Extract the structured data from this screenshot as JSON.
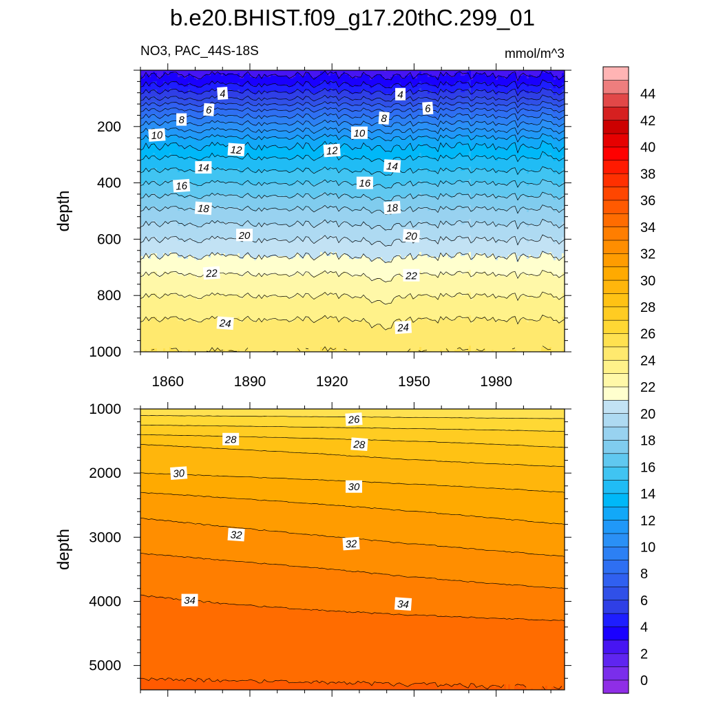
{
  "title": "b.e20.BHIST.f09_g17.20thC.299_01",
  "subtitle_left": "NO3, PAC_44S-18S",
  "subtitle_right": "mmol/m^3",
  "chart_data": [
    {
      "type": "contour",
      "panel": "upper",
      "variable": "NO3",
      "region": "PAC_44S-18S",
      "units": "mmol/m^3",
      "xlabel": "",
      "ylabel": "depth",
      "xlim": [
        1850,
        2005
      ],
      "ylim": [
        1000,
        0
      ],
      "x_ticks": [
        1860,
        1890,
        1920,
        1950,
        1980
      ],
      "y_ticks": [
        200,
        400,
        600,
        800,
        1000
      ],
      "contour_interval": 1,
      "depth_profile": {
        "depth": [
          0,
          50,
          100,
          150,
          200,
          250,
          300,
          400,
          500,
          600,
          700,
          800,
          900,
          1000
        ],
        "no3": [
          2.5,
          4.0,
          6.0,
          8.5,
          10.5,
          12.5,
          13.8,
          16.0,
          18.2,
          20.0,
          21.7,
          23.0,
          24.2,
          25.0
        ]
      },
      "contour_labels": [
        {
          "value": "4",
          "year": 1880,
          "depth": 82
        },
        {
          "value": "4",
          "year": 1945,
          "depth": 85
        },
        {
          "value": "6",
          "year": 1875,
          "depth": 140
        },
        {
          "value": "6",
          "year": 1955,
          "depth": 135
        },
        {
          "value": "8",
          "year": 1865,
          "depth": 175
        },
        {
          "value": "8",
          "year": 1939,
          "depth": 170
        },
        {
          "value": "10",
          "year": 1856,
          "depth": 230
        },
        {
          "value": "10",
          "year": 1930,
          "depth": 222
        },
        {
          "value": "12",
          "year": 1885,
          "depth": 282
        },
        {
          "value": "12",
          "year": 1920,
          "depth": 285
        },
        {
          "value": "14",
          "year": 1873,
          "depth": 345
        },
        {
          "value": "14",
          "year": 1942,
          "depth": 340
        },
        {
          "value": "16",
          "year": 1865,
          "depth": 410
        },
        {
          "value": "16",
          "year": 1932,
          "depth": 400
        },
        {
          "value": "18",
          "year": 1873,
          "depth": 490
        },
        {
          "value": "18",
          "year": 1942,
          "depth": 488
        },
        {
          "value": "20",
          "year": 1888,
          "depth": 585
        },
        {
          "value": "20",
          "year": 1949,
          "depth": 588
        },
        {
          "value": "22",
          "year": 1876,
          "depth": 720
        },
        {
          "value": "22",
          "year": 1949,
          "depth": 728
        },
        {
          "value": "24",
          "year": 1881,
          "depth": 898
        },
        {
          "value": "24",
          "year": 1946,
          "depth": 913
        }
      ]
    },
    {
      "type": "contour",
      "panel": "lower",
      "xlabel": "",
      "ylabel": "depth",
      "xlim": [
        1850,
        2005
      ],
      "ylim": [
        5380,
        1000
      ],
      "y_ticks": [
        1000,
        2000,
        3000,
        4000,
        5000
      ],
      "contour_interval": 1,
      "depth_profile_1850": {
        "depth": [
          1000,
          1100,
          1250,
          1400,
          1550,
          1700,
          2000,
          2300,
          2700,
          3100,
          3500,
          3900,
          4500,
          5380
        ],
        "no3": [
          25.0,
          26.0,
          27.0,
          28.0,
          29.0,
          29.5,
          30.0,
          31.0,
          32.0,
          32.7,
          33.5,
          34.0,
          34.6,
          35.1
        ]
      },
      "depth_profile_2005": {
        "depth": [
          1000,
          1150,
          1350,
          1600,
          1900,
          2300,
          2800,
          3300,
          3800,
          4300,
          4700,
          5300,
          5380
        ],
        "no3": [
          25.0,
          26.0,
          27.0,
          28.0,
          29.0,
          30.0,
          31.0,
          32.0,
          33.0,
          34.0,
          34.6,
          34.98,
          35.0
        ]
      },
      "contour_labels": [
        {
          "value": "26",
          "year": 1928,
          "depth": 1160
        },
        {
          "value": "28",
          "year": 1883,
          "depth": 1470
        },
        {
          "value": "28",
          "year": 1930,
          "depth": 1550
        },
        {
          "value": "30",
          "year": 1864,
          "depth": 2000
        },
        {
          "value": "30",
          "year": 1928,
          "depth": 2210
        },
        {
          "value": "32",
          "year": 1885,
          "depth": 2960
        },
        {
          "value": "32",
          "year": 1927,
          "depth": 3100
        },
        {
          "value": "34",
          "year": 1868,
          "depth": 3980
        },
        {
          "value": "34",
          "year": 1946,
          "depth": 4040
        }
      ]
    }
  ],
  "colorbar": {
    "levels": [
      "0",
      "2",
      "4",
      "6",
      "8",
      "10",
      "12",
      "14",
      "16",
      "18",
      "20",
      "22",
      "24",
      "26",
      "28",
      "30",
      "32",
      "34",
      "36",
      "38",
      "40",
      "42",
      "44"
    ],
    "colors": [
      "#8F2EE6",
      "#7A2EEB",
      "#5F25F0",
      "#4715F2",
      "#1A00FF",
      "#1E1EFF",
      "#2F3FE6",
      "#3050E8",
      "#3060F0",
      "#2E6FF2",
      "#2C80F4",
      "#2A90F6",
      "#2098F8",
      "#12A8F8",
      "#00B8F8",
      "#20BCF5",
      "#40C4F2",
      "#60C8F0",
      "#80CCEE",
      "#98D2F0",
      "#AEDAF2",
      "#C2E2F4",
      "#FFFFCE",
      "#FFF8A8",
      "#FFF28A",
      "#FFE96E",
      "#FFE150",
      "#FFD834",
      "#FFCC22",
      "#FFC214",
      "#FFB60C",
      "#FFAA00",
      "#FF9C00",
      "#FF8E00",
      "#FF7E00",
      "#FF6C00",
      "#FF5A00",
      "#FF4600",
      "#FF3000",
      "#FF1A00",
      "#FF0000",
      "#E60000",
      "#CC0000",
      "#D62020",
      "#E24848",
      "#EE7E7E",
      "#FFB4B4"
    ],
    "bin_start": -1
  }
}
